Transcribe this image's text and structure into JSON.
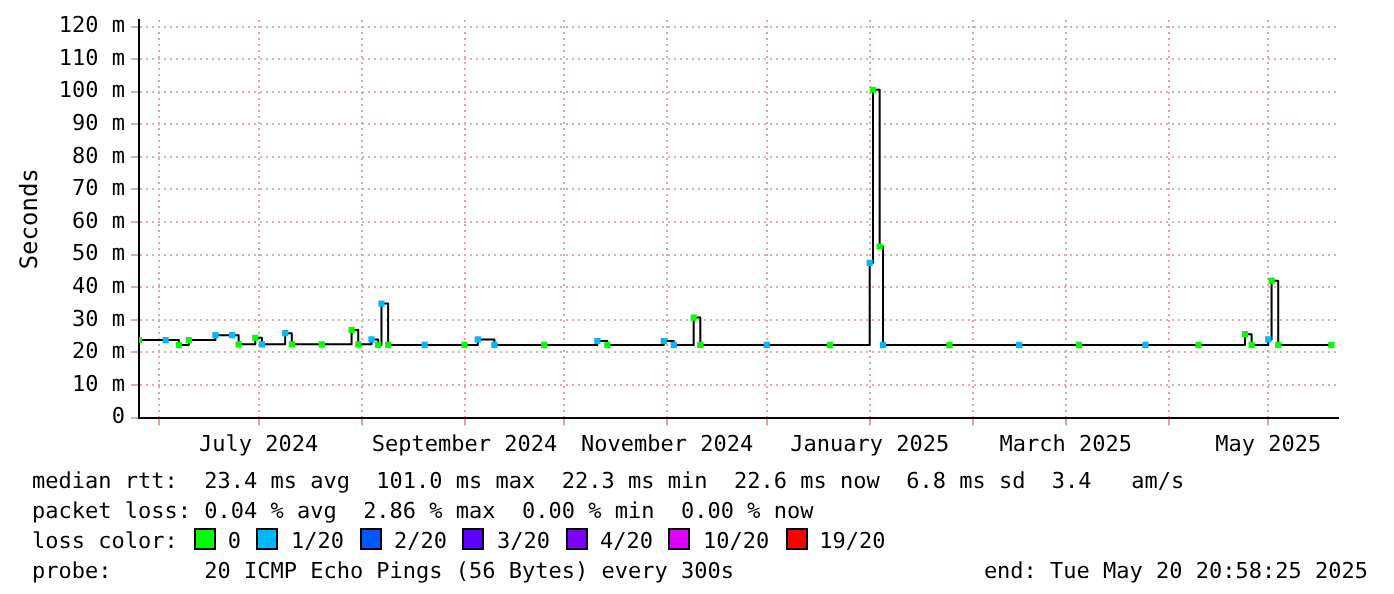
{
  "chart_data": {
    "type": "step",
    "ylabel": "Seconds",
    "legend_title": "loss color:",
    "legend": "bottom",
    "grid": true,
    "xlim": [
      "2024-05-26",
      "2025-05-22"
    ],
    "xticks": [
      {
        "value": "2024-06-01",
        "label": null
      },
      {
        "value": "2024-07-01",
        "label": "July 2024"
      },
      {
        "value": "2024-08-01",
        "label": null
      },
      {
        "value": "2024-09-01",
        "label": "September 2024"
      },
      {
        "value": "2024-10-01",
        "label": null
      },
      {
        "value": "2024-11-01",
        "label": "November 2024"
      },
      {
        "value": "2024-12-01",
        "label": null
      },
      {
        "value": "2025-01-01",
        "label": "January 2025"
      },
      {
        "value": "2025-02-01",
        "label": null
      },
      {
        "value": "2025-03-01",
        "label": "March 2025"
      },
      {
        "value": "2025-04-01",
        "label": null
      },
      {
        "value": "2025-05-01",
        "label": "May 2025"
      }
    ],
    "ylim": [
      0,
      122
    ],
    "yticks": [
      {
        "value": 0,
        "label": "0"
      },
      {
        "value": 10,
        "label": "10 m"
      },
      {
        "value": 20,
        "label": "20 m"
      },
      {
        "value": 30,
        "label": "30 m"
      },
      {
        "value": 40,
        "label": "40 m"
      },
      {
        "value": 50,
        "label": "50 m"
      },
      {
        "value": 60,
        "label": "60 m"
      },
      {
        "value": 70,
        "label": "70 m"
      },
      {
        "value": 80,
        "label": "80 m"
      },
      {
        "value": 90,
        "label": "90 m"
      },
      {
        "value": 100,
        "label": "100 m"
      },
      {
        "value": 110,
        "label": "110 m"
      },
      {
        "value": 120,
        "label": "120 m"
      }
    ],
    "series": [
      {
        "color": "#000000",
        "x": [
          "2024-05-26",
          "2024-06-03",
          "2024-06-07",
          "2024-06-10",
          "2024-06-18",
          "2024-06-23",
          "2024-06-25",
          "2024-06-30",
          "2024-07-02",
          "2024-07-09",
          "2024-07-11",
          "2024-07-20",
          "2024-07-29",
          "2024-07-31",
          "2024-08-04",
          "2024-08-06",
          "2024-08-07",
          "2024-08-09",
          "2024-08-20",
          "2024-09-01",
          "2024-09-05",
          "2024-09-10",
          "2024-09-25",
          "2024-10-11",
          "2024-10-14",
          "2024-10-31",
          "2024-11-03",
          "2024-11-09",
          "2024-11-11",
          "2024-12-01",
          "2024-12-20",
          "2025-01-01",
          "2025-01-02",
          "2025-01-04",
          "2025-01-05",
          "2025-01-25",
          "2025-02-15",
          "2025-03-05",
          "2025-03-25",
          "2025-04-10",
          "2025-04-24",
          "2025-04-26",
          "2025-05-01",
          "2025-05-02",
          "2025-05-04",
          "2025-05-20"
        ],
        "values": [
          23.8,
          23.8,
          22.3,
          23.8,
          25.3,
          25.3,
          22.5,
          24.5,
          22.5,
          25.9,
          22.5,
          22.5,
          26.9,
          22.5,
          24,
          22.3,
          35,
          22.3,
          22.3,
          22.3,
          24,
          22.3,
          22.3,
          23.5,
          22.3,
          23.5,
          22.3,
          30.7,
          22.3,
          22.3,
          22.3,
          47.5,
          100.6,
          52.5,
          22.3,
          22.3,
          22.3,
          22.3,
          22.3,
          22.3,
          25.6,
          22.3,
          24,
          42,
          22.3,
          22.3
        ]
      },
      {
        "type": "scatter",
        "marker": "square",
        "name": "0",
        "color": "#00ff00",
        "x": [
          "2024-05-26",
          "2024-06-07",
          "2024-06-10",
          "2024-06-25",
          "2024-06-30",
          "2024-07-11",
          "2024-07-20",
          "2024-07-29",
          "2024-07-31",
          "2024-08-06",
          "2024-08-09",
          "2024-09-01",
          "2024-09-25",
          "2024-10-14",
          "2024-11-09",
          "2024-11-11",
          "2024-12-20",
          "2025-01-02",
          "2025-01-04",
          "2025-01-25",
          "2025-03-05",
          "2025-04-10",
          "2025-04-24",
          "2025-04-26",
          "2025-05-02",
          "2025-05-04",
          "2025-05-20"
        ],
        "values": [
          23.8,
          22.3,
          23.8,
          22.5,
          24.5,
          22.5,
          22.5,
          26.9,
          22.5,
          22.3,
          22.3,
          22.3,
          22.3,
          22.3,
          30.7,
          22.3,
          22.3,
          100.6,
          52.5,
          22.3,
          22.3,
          22.3,
          25.6,
          22.3,
          42,
          22.3,
          22.3
        ]
      },
      {
        "type": "scatter",
        "marker": "square",
        "name": "1/20",
        "color": "#00b8ff",
        "x": [
          "2024-06-03",
          "2024-06-18",
          "2024-06-23",
          "2024-07-02",
          "2024-07-09",
          "2024-08-04",
          "2024-08-07",
          "2024-08-20",
          "2024-09-05",
          "2024-09-10",
          "2024-10-11",
          "2024-10-31",
          "2024-11-03",
          "2024-12-01",
          "2025-01-01",
          "2025-01-05",
          "2025-02-15",
          "2025-03-25",
          "2025-05-01"
        ],
        "values": [
          23.8,
          25.3,
          25.3,
          22.5,
          25.9,
          24,
          35,
          22.3,
          24,
          22.3,
          23.5,
          23.5,
          22.3,
          22.3,
          47.5,
          22.3,
          22.3,
          22.3,
          24
        ]
      },
      {
        "type": "scatter",
        "marker": "square",
        "name": "2/20",
        "color": "#0059ff"
      },
      {
        "type": "scatter",
        "marker": "square",
        "name": "3/20",
        "color": "#5e00ff"
      },
      {
        "type": "scatter",
        "marker": "square",
        "name": "4/20",
        "color": "#7e00ff"
      },
      {
        "type": "scatter",
        "marker": "square",
        "name": "10/20",
        "color": "#dd00ff"
      },
      {
        "type": "scatter",
        "marker": "square",
        "name": "19/20",
        "color": "#ff0000"
      }
    ],
    "annotations": [
      "median rtt:  23.4 ms avg  101.0 ms max  22.3 ms min  22.6 ms now  6.8 ms sd  3.4   am/s",
      "packet loss: 0.04 % avg  2.86 % max  0.00 % min  0.00 % now",
      "probe:       20 ICMP Echo Pings (56 Bytes) every 300s",
      "end: Tue May 20 20:58:25 2025"
    ]
  }
}
